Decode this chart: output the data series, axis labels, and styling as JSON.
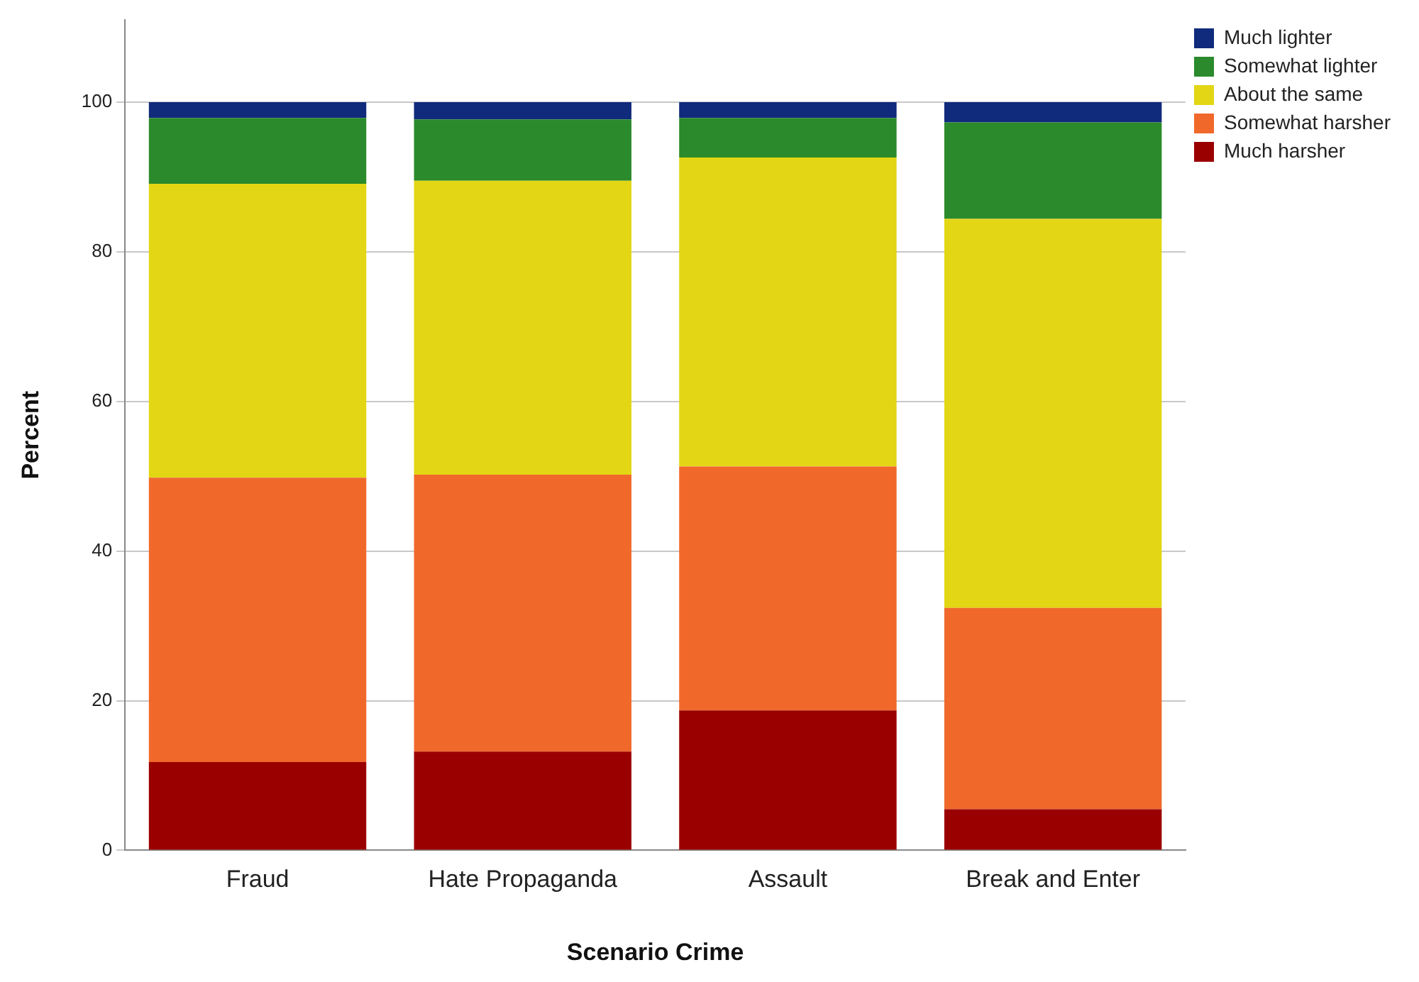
{
  "chart_data": {
    "type": "bar",
    "stacked": true,
    "xlabel": "Scenario Crime",
    "ylabel": "Percent",
    "categories": [
      "Fraud",
      "Hate Propaganda",
      "Assault",
      "Break and Enter"
    ],
    "series": [
      {
        "name": "Much harsher",
        "color": "#9b0000",
        "values": [
          11.8,
          13.2,
          18.7,
          5.5
        ]
      },
      {
        "name": "Somewhat harsher",
        "color": "#f0692b",
        "values": [
          38,
          37,
          32.6,
          26.9
        ]
      },
      {
        "name": "About the same",
        "color": "#e3d614",
        "values": [
          39.3,
          39.3,
          41.3,
          52
        ]
      },
      {
        "name": "Somewhat lighter",
        "color": "#2b8a2b",
        "values": [
          8.8,
          8.2,
          5.3,
          12.9
        ]
      },
      {
        "name": "Much lighter",
        "color": "#102a7c",
        "values": [
          2.1,
          2.3,
          2.1,
          2.7
        ]
      }
    ],
    "ylim": [
      0,
      111
    ],
    "yticks": [
      0,
      20,
      40,
      60,
      80,
      100
    ],
    "grid": "y",
    "legend": "top right"
  }
}
